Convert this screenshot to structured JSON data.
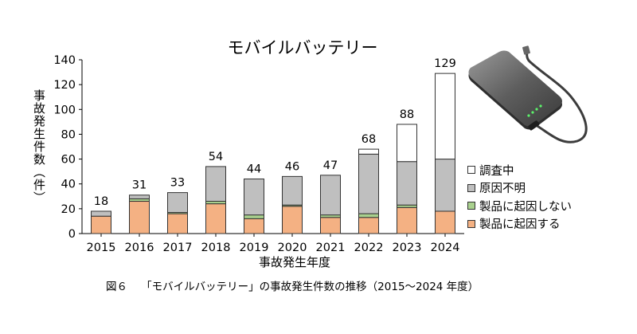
{
  "chart_data": {
    "type": "bar",
    "stacked": true,
    "title": "モバイルバッテリー",
    "xlabel": "事故発生年度",
    "ylabel": "事故発生件数（件）",
    "ylim": [
      0,
      140
    ],
    "yticks": [
      0,
      20,
      40,
      60,
      80,
      100,
      120,
      140
    ],
    "categories": [
      "2015",
      "2016",
      "2017",
      "2018",
      "2019",
      "2020",
      "2021",
      "2022",
      "2023",
      "2024"
    ],
    "totals": [
      18,
      31,
      33,
      54,
      44,
      46,
      47,
      68,
      88,
      129
    ],
    "series": [
      {
        "name": "製品に起因する",
        "color": "#f4b183",
        "values": [
          14,
          26,
          16,
          24,
          12,
          22,
          13,
          13,
          21,
          18
        ]
      },
      {
        "name": "製品に起因しない",
        "color": "#a9d18e",
        "values": [
          0,
          2,
          1,
          2,
          3,
          1,
          2,
          3,
          2,
          0
        ]
      },
      {
        "name": "原因不明",
        "color": "#bfbfbf",
        "values": [
          4,
          3,
          16,
          28,
          29,
          23,
          32,
          48,
          35,
          42
        ]
      },
      {
        "name": "調査中",
        "color": "#ffffff",
        "values": [
          0,
          0,
          0,
          0,
          0,
          0,
          0,
          4,
          30,
          69
        ]
      }
    ],
    "legend_order": [
      "調査中",
      "原因不明",
      "製品に起因しない",
      "製品に起因する"
    ],
    "legend_position": "right"
  },
  "caption": {
    "figure": "図６",
    "text": "「モバイルバッテリー」の事故発生件数の推移（2015～2024 年度）"
  },
  "image": {
    "icon": "mobile-battery-icon"
  }
}
